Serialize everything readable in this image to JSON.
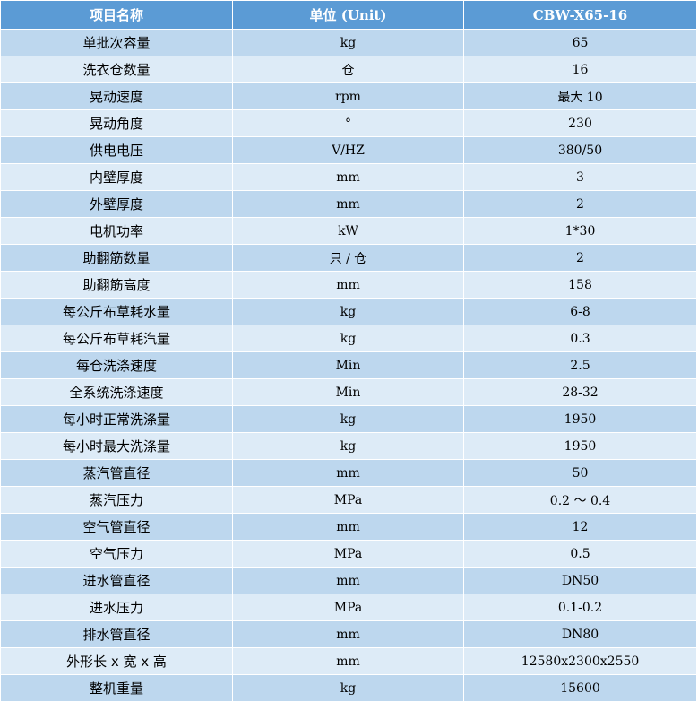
{
  "header": {
    "item": "项目名称",
    "unit": "单位 (Unit)",
    "model": "CBW-X65-16"
  },
  "colors": {
    "header_bg": "#5b9bd5",
    "row_dark": "#bdd7ee",
    "row_light": "#ddebf7"
  },
  "rows": [
    {
      "item": "单批次容量",
      "unit": "kg",
      "value": "65"
    },
    {
      "item": "洗衣仓数量",
      "unit": "仓",
      "value": "16"
    },
    {
      "item": "晃动速度",
      "unit": "rpm",
      "value": "最大 10"
    },
    {
      "item": "晃动角度",
      "unit": "°",
      "value": "230"
    },
    {
      "item": "供电电压",
      "unit": "V/HZ",
      "value": "380/50"
    },
    {
      "item": "内壁厚度",
      "unit": "mm",
      "value": "3"
    },
    {
      "item": "外壁厚度",
      "unit": "mm",
      "value": "2"
    },
    {
      "item": "电机功率",
      "unit": "kW",
      "value": "1*30"
    },
    {
      "item": "助翻筋数量",
      "unit": "只 / 仓",
      "value": "2"
    },
    {
      "item": "助翻筋高度",
      "unit": "mm",
      "value": "158"
    },
    {
      "item": "每公斤布草耗水量",
      "unit": "kg",
      "value": "6-8"
    },
    {
      "item": "每公斤布草耗汽量",
      "unit": "kg",
      "value": "0.3"
    },
    {
      "item": "每仓洗涤速度",
      "unit": "Min",
      "value": "2.5"
    },
    {
      "item": "全系统洗涤速度",
      "unit": "Min",
      "value": "28-32"
    },
    {
      "item": "每小时正常洗涤量",
      "unit": "kg",
      "value": "1950"
    },
    {
      "item": "每小时最大洗涤量",
      "unit": "kg",
      "value": "1950"
    },
    {
      "item": "蒸汽管直径",
      "unit": "mm",
      "value": "50"
    },
    {
      "item": "蒸汽压力",
      "unit": "MPa",
      "value": "0.2 ～ 0.4"
    },
    {
      "item": "空气管直径",
      "unit": "mm",
      "value": "12"
    },
    {
      "item": "空气压力",
      "unit": "MPa",
      "value": "0.5"
    },
    {
      "item": "进水管直径",
      "unit": "mm",
      "value": "DN50"
    },
    {
      "item": "进水压力",
      "unit": "MPa",
      "value": "0.1-0.2"
    },
    {
      "item": "排水管直径",
      "unit": "mm",
      "value": "DN80"
    },
    {
      "item": "外形长 x 宽 x 高",
      "unit": "mm",
      "value": "12580x2300x2550"
    },
    {
      "item": "整机重量",
      "unit": "kg",
      "value": "15600"
    }
  ]
}
